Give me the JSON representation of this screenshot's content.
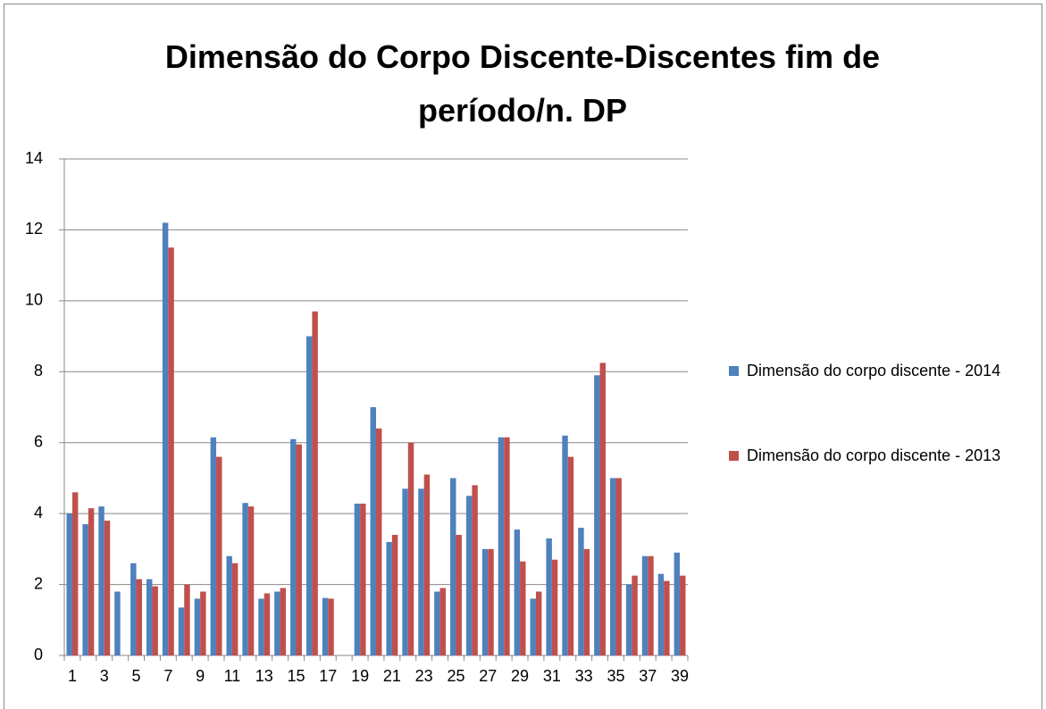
{
  "chart_data": {
    "type": "bar",
    "title": "Dimensão do Corpo Discente-Discentes fim de período/n. DP",
    "categories": [
      "1",
      null,
      "3",
      null,
      "5",
      null,
      "7",
      null,
      "9",
      null,
      "11",
      null,
      "13",
      null,
      "15",
      null,
      "17",
      null,
      "19",
      null,
      "21",
      null,
      "23",
      null,
      "25",
      null,
      "27",
      null,
      "29",
      null,
      "31",
      null,
      "33",
      null,
      "35",
      null,
      "37",
      null,
      "39"
    ],
    "series": [
      {
        "name": "Dimensão do corpo discente - 2014",
        "color": "#4f81bd",
        "values": [
          4.0,
          3.7,
          4.2,
          1.8,
          2.6,
          2.15,
          12.2,
          1.35,
          1.6,
          6.15,
          2.8,
          4.3,
          1.6,
          1.8,
          6.1,
          9.0,
          1.62,
          null,
          4.28,
          7.0,
          3.2,
          4.7,
          4.7,
          1.8,
          5.0,
          4.5,
          3.0,
          6.15,
          3.55,
          1.6,
          3.3,
          6.2,
          3.6,
          7.9,
          5.0,
          2.0,
          2.8,
          2.3,
          2.9
        ]
      },
      {
        "name": "Dimensão do corpo discente - 2013",
        "color": "#c0504d",
        "values": [
          4.6,
          4.15,
          3.8,
          null,
          2.15,
          1.95,
          11.5,
          2.0,
          1.8,
          5.6,
          2.6,
          4.2,
          1.75,
          1.9,
          5.95,
          9.7,
          1.6,
          null,
          4.28,
          6.4,
          3.4,
          6.0,
          5.1,
          1.9,
          3.4,
          4.8,
          3.0,
          6.15,
          2.65,
          1.8,
          2.7,
          5.6,
          3.0,
          8.25,
          5.0,
          2.25,
          2.8,
          2.1,
          2.25
        ]
      }
    ],
    "ylim": [
      0,
      14
    ],
    "yticks": [
      0,
      2,
      4,
      6,
      8,
      10,
      12,
      14
    ],
    "grid": true,
    "legend": "right"
  }
}
